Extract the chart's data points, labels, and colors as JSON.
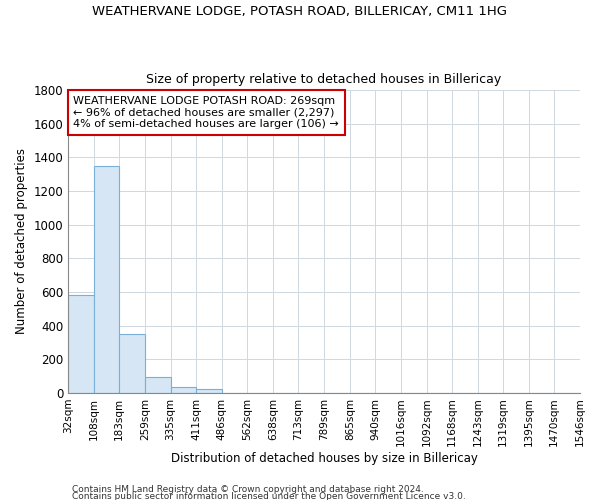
{
  "title": "WEATHERVANE LODGE, POTASH ROAD, BILLERICAY, CM11 1HG",
  "subtitle": "Size of property relative to detached houses in Billericay",
  "xlabel": "Distribution of detached houses by size in Billericay",
  "ylabel": "Number of detached properties",
  "footnote1": "Contains HM Land Registry data © Crown copyright and database right 2024.",
  "footnote2": "Contains public sector information licensed under the Open Government Licence v3.0.",
  "bin_edges": [
    32,
    108,
    183,
    259,
    335,
    411,
    486,
    562,
    638,
    713,
    789,
    865,
    940,
    1016,
    1092,
    1168,
    1243,
    1319,
    1395,
    1470,
    1546
  ],
  "bin_counts": [
    580,
    1350,
    350,
    95,
    35,
    20,
    0,
    0,
    0,
    0,
    0,
    0,
    0,
    0,
    0,
    0,
    0,
    0,
    0,
    0
  ],
  "bar_color": "#d6e6f5",
  "bar_edgecolor": "#7ab0d8",
  "background_color": "#ffffff",
  "grid_color": "#d0d8e0",
  "ylim": [
    0,
    1800
  ],
  "yticks": [
    0,
    200,
    400,
    600,
    800,
    1000,
    1200,
    1400,
    1600,
    1800
  ],
  "annotation_text": "WEATHERVANE LODGE POTASH ROAD: 269sqm\n← 96% of detached houses are smaller (2,297)\n4% of semi-detached houses are larger (106) →",
  "annotation_box_color": "#ffffff",
  "annotation_box_edgecolor": "#cc0000",
  "title_fontsize": 9.5,
  "subtitle_fontsize": 9,
  "axis_label_fontsize": 8.5,
  "tick_label_fontsize": 7.5,
  "footnote_fontsize": 6.5,
  "annotation_fontsize": 8
}
